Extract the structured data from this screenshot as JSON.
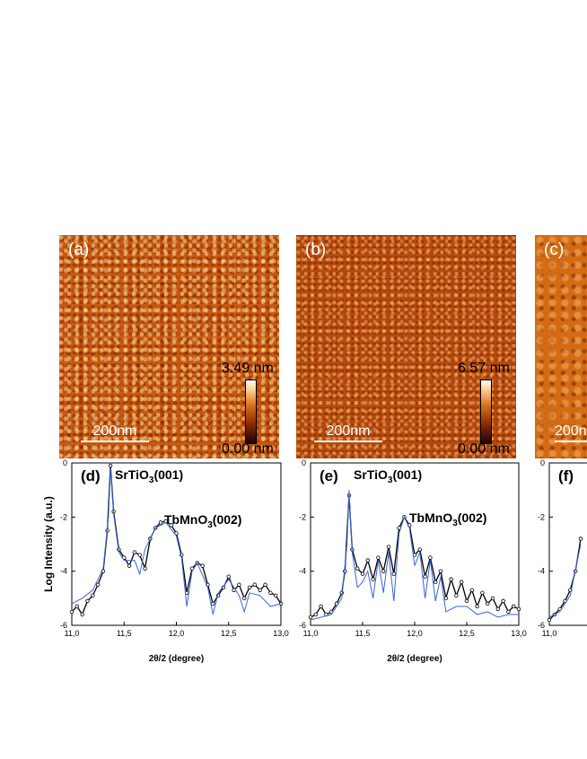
{
  "afm_panels": [
    {
      "label": "(a)",
      "scale_label": "200nm",
      "z_max": "3.49 nm",
      "z_min": "0.00 nm"
    },
    {
      "label": "(b)",
      "scale_label": "200nm",
      "z_max": "6.57 nm",
      "z_min": "0.00 nm"
    },
    {
      "label": "(c)",
      "scale_label": "200n"
    }
  ],
  "colors": {
    "afm_base": "#c8590e",
    "fit_line": "#3a63d8",
    "data_line": "#000000"
  },
  "chart_data": [
    {
      "type": "line",
      "panel": "(d)",
      "title": "",
      "xlabel": "2θ/2 (degree)",
      "ylabel": "Log Intensity (a.u.)",
      "xlim": [
        11.0,
        13.0
      ],
      "ylim": [
        -6,
        0
      ],
      "xticks": [
        "11,0",
        "11,5",
        "12,0",
        "12,5",
        "13,0"
      ],
      "yticks": [
        "0",
        "-2",
        "-4",
        "-6"
      ],
      "annotations": [
        {
          "text": "SrTiO",
          "sub": "3",
          "tail": "(001)"
        },
        {
          "text": "TbMnO",
          "sub": "3",
          "tail": "(002)"
        }
      ],
      "series": [
        {
          "name": "data",
          "x": [
            11.0,
            11.05,
            11.1,
            11.15,
            11.2,
            11.25,
            11.3,
            11.34,
            11.37,
            11.4,
            11.45,
            11.5,
            11.55,
            11.6,
            11.65,
            11.7,
            11.75,
            11.8,
            11.85,
            11.9,
            11.95,
            12.0,
            12.05,
            12.1,
            12.15,
            12.2,
            12.25,
            12.3,
            12.35,
            12.4,
            12.45,
            12.5,
            12.55,
            12.6,
            12.65,
            12.7,
            12.75,
            12.8,
            12.85,
            12.9,
            12.95,
            13.0
          ],
          "y": [
            -5.5,
            -5.3,
            -5.6,
            -5.1,
            -4.9,
            -4.5,
            -4.0,
            -2.5,
            -0.1,
            -1.8,
            -3.2,
            -3.5,
            -3.8,
            -3.3,
            -3.4,
            -3.9,
            -2.8,
            -2.4,
            -2.2,
            -2.15,
            -2.3,
            -2.6,
            -3.4,
            -4.8,
            -3.9,
            -3.7,
            -3.8,
            -4.5,
            -5.2,
            -4.9,
            -4.6,
            -4.2,
            -4.7,
            -4.5,
            -5.0,
            -4.6,
            -4.5,
            -4.7,
            -4.5,
            -4.8,
            -4.9,
            -5.2
          ]
        },
        {
          "name": "fit",
          "x": [
            11.0,
            11.1,
            11.2,
            11.3,
            11.35,
            11.37,
            11.4,
            11.45,
            11.5,
            11.6,
            11.65,
            11.7,
            11.75,
            11.8,
            11.9,
            12.0,
            12.05,
            12.1,
            12.15,
            12.2,
            12.3,
            12.35,
            12.4,
            12.5,
            12.6,
            12.65,
            12.7,
            12.8,
            12.9,
            13.0
          ],
          "y": [
            -5.2,
            -5.0,
            -4.7,
            -3.9,
            -2.0,
            -0.2,
            -1.9,
            -3.3,
            -3.6,
            -3.6,
            -4.1,
            -3.2,
            -2.8,
            -2.4,
            -2.2,
            -2.7,
            -3.5,
            -5.3,
            -4.0,
            -3.7,
            -4.6,
            -5.6,
            -4.8,
            -4.3,
            -4.9,
            -5.5,
            -4.8,
            -4.9,
            -5.3,
            -5.2
          ]
        }
      ]
    },
    {
      "type": "line",
      "panel": "(e)",
      "title": "",
      "xlabel": "2θ/2 (degree)",
      "ylabel": "",
      "xlim": [
        11.0,
        13.0
      ],
      "ylim": [
        -6,
        0
      ],
      "xticks": [
        "11,0",
        "11,5",
        "12,0",
        "12,5",
        "13,0"
      ],
      "yticks": [
        "0",
        "-2",
        "-4",
        "-6"
      ],
      "annotations": [
        {
          "text": "SrTiO",
          "sub": "3",
          "tail": "(001)"
        },
        {
          "text": "TbMnO",
          "sub": "3",
          "tail": "(002)"
        }
      ],
      "series": [
        {
          "name": "data",
          "x": [
            11.0,
            11.05,
            11.1,
            11.15,
            11.2,
            11.25,
            11.3,
            11.33,
            11.37,
            11.4,
            11.45,
            11.5,
            11.55,
            11.6,
            11.65,
            11.7,
            11.75,
            11.8,
            11.85,
            11.9,
            11.95,
            12.0,
            12.05,
            12.1,
            12.15,
            12.2,
            12.25,
            12.3,
            12.35,
            12.4,
            12.45,
            12.5,
            12.55,
            12.6,
            12.65,
            12.7,
            12.75,
            12.8,
            12.85,
            12.9,
            12.95,
            13.0
          ],
          "y": [
            -5.7,
            -5.6,
            -5.3,
            -5.6,
            -5.5,
            -5.2,
            -4.8,
            -4.0,
            -1.2,
            -3.2,
            -3.9,
            -4.1,
            -3.6,
            -4.3,
            -3.5,
            -4.0,
            -3.1,
            -4.1,
            -2.4,
            -2.0,
            -2.3,
            -3.4,
            -3.2,
            -4.2,
            -3.5,
            -4.4,
            -4.0,
            -5.0,
            -4.3,
            -4.9,
            -4.4,
            -5.1,
            -4.7,
            -5.3,
            -4.8,
            -5.2,
            -5.0,
            -5.4,
            -5.1,
            -5.5,
            -5.3,
            -5.4
          ]
        },
        {
          "name": "fit",
          "x": [
            11.0,
            11.1,
            11.2,
            11.3,
            11.35,
            11.37,
            11.4,
            11.45,
            11.5,
            11.55,
            11.6,
            11.65,
            11.7,
            11.75,
            11.8,
            11.85,
            11.9,
            11.95,
            12.0,
            12.05,
            12.1,
            12.15,
            12.2,
            12.25,
            12.3,
            12.4,
            12.5,
            12.6,
            12.7,
            12.8,
            12.9,
            13.0
          ],
          "y": [
            -5.8,
            -5.7,
            -5.6,
            -5.0,
            -3.0,
            -1.0,
            -3.3,
            -4.6,
            -4.4,
            -4.0,
            -5.0,
            -3.6,
            -4.8,
            -3.3,
            -5.1,
            -2.6,
            -2.0,
            -2.4,
            -3.8,
            -3.3,
            -5.0,
            -3.6,
            -5.1,
            -4.2,
            -5.5,
            -5.3,
            -5.3,
            -5.6,
            -5.5,
            -5.7,
            -5.6,
            -5.6
          ]
        }
      ]
    },
    {
      "type": "line",
      "panel": "(f)",
      "title": "",
      "xlabel": "",
      "ylabel": "",
      "xlim": [
        11.0,
        13.0
      ],
      "ylim": [
        -6,
        0
      ],
      "xticks": [
        "11,0"
      ],
      "yticks": [
        "0",
        "-2",
        "-4",
        "-6"
      ],
      "annotations": [],
      "series": [
        {
          "name": "data",
          "x": [
            11.0,
            11.05,
            11.1,
            11.15,
            11.2,
            11.25,
            11.3
          ],
          "y": [
            -5.8,
            -5.6,
            -5.4,
            -5.1,
            -4.7,
            -4.0,
            -2.8
          ]
        },
        {
          "name": "fit",
          "x": [
            11.0,
            11.1,
            11.2,
            11.3
          ],
          "y": [
            -5.7,
            -5.5,
            -4.9,
            -3.0
          ]
        }
      ]
    }
  ]
}
